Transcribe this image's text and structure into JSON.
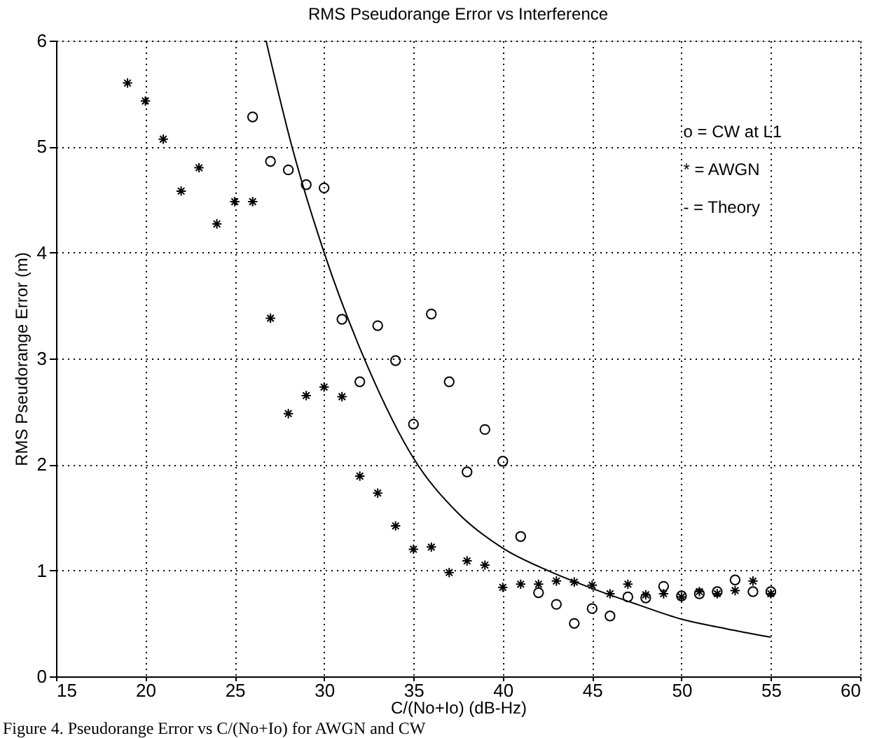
{
  "chart_data": {
    "type": "scatter",
    "title": "RMS Pseudorange Error vs Interference",
    "xlabel": "C/(No+Io) (dB-Hz)",
    "ylabel": "RMS Pseudorange Error (m)",
    "xlim": [
      15,
      60
    ],
    "xticks": [
      15,
      20,
      25,
      30,
      35,
      40,
      45,
      50,
      55,
      60
    ],
    "ylim": [
      0,
      6
    ],
    "yticks": [
      0,
      1,
      2,
      3,
      4,
      5,
      6
    ],
    "grid": true,
    "series": [
      {
        "marker": "circle",
        "color": "#000000",
        "x": [
          26,
          27,
          28,
          29,
          30,
          31,
          32,
          33,
          34,
          35,
          36,
          37,
          38,
          39,
          40,
          41,
          42,
          43,
          44,
          45,
          46,
          47,
          48,
          49,
          50,
          51,
          52,
          53,
          54,
          55
        ],
        "values": [
          5.28,
          4.86,
          4.78,
          4.64,
          4.61,
          3.37,
          2.78,
          3.31,
          2.98,
          2.38,
          3.42,
          2.78,
          1.93,
          2.33,
          2.03,
          1.32,
          0.79,
          0.68,
          0.5,
          0.64,
          0.57,
          0.75,
          0.74,
          0.85,
          0.76,
          0.78,
          0.8,
          0.91,
          0.8,
          0.8
        ]
      },
      {
        "marker": "cross",
        "color": "#000000",
        "x": [
          19,
          20,
          21,
          22,
          23,
          24,
          25,
          26,
          27,
          28,
          29,
          30,
          31,
          32,
          33,
          34,
          35,
          36,
          37,
          38,
          39,
          40,
          41,
          42,
          43,
          44,
          45,
          46,
          47,
          48,
          49,
          50,
          51,
          52,
          53,
          54,
          55
        ],
        "values": [
          5.6,
          5.43,
          5.07,
          4.58,
          4.8,
          4.27,
          4.48,
          4.48,
          3.38,
          2.48,
          2.65,
          2.73,
          2.64,
          1.89,
          1.73,
          1.42,
          1.2,
          1.22,
          0.98,
          1.09,
          1.05,
          0.84,
          0.87,
          0.87,
          0.9,
          0.89,
          0.86,
          0.78,
          0.87,
          0.77,
          0.78,
          0.75,
          0.8,
          0.78,
          0.81,
          0.9,
          0.78
        ]
      },
      {
        "type": "line",
        "marker": "none",
        "line_style": "solid",
        "color": "#000000",
        "x": [
          26.75,
          28.2,
          30,
          32.5,
          35,
          37.5,
          40,
          42.5,
          45,
          47.5,
          50,
          52.5,
          55
        ],
        "values": [
          6,
          5,
          4,
          2.9,
          2.06,
          1.54,
          1.21,
          1.0,
          0.83,
          0.68,
          0.54,
          0.45,
          0.37
        ]
      }
    ],
    "annotations": [
      "o = CW at L1",
      "* = AWGN",
      "- = Theory",
      "Figure 4.  Pseudorange Error vs C/(No+Io) for AWGN and CW"
    ]
  }
}
